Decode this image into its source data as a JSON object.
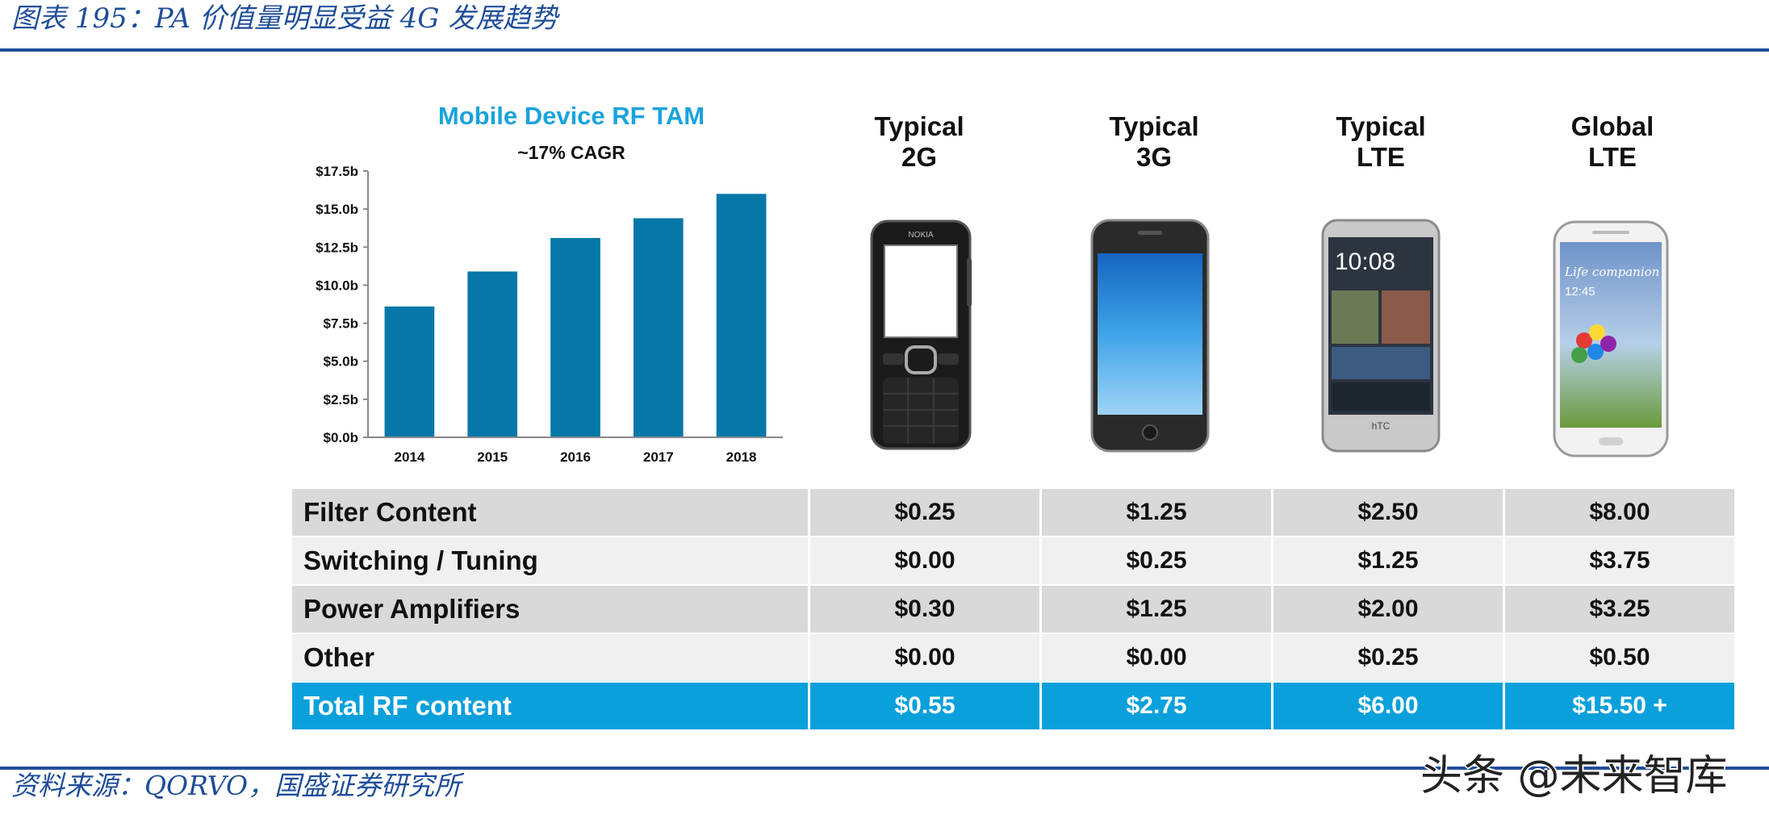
{
  "figure_title": "图表 195：PA 价值量明显受益 4G 发展趋势",
  "source": "资料来源：QORVO，国盛证券研究所",
  "watermark": "头条 @未来智库",
  "colors": {
    "bar": "#0678a8",
    "title": "#1aa3dc",
    "total_row": "#0aa0dc",
    "rule": "#1f4e99"
  },
  "chart_data": {
    "type": "bar",
    "title": "Mobile Device RF TAM",
    "subtitle": "~17% CAGR",
    "categories": [
      "2014",
      "2015",
      "2016",
      "2017",
      "2018"
    ],
    "values": [
      8.6,
      10.9,
      13.1,
      14.4,
      16.0
    ],
    "ylim": [
      0,
      17.5
    ],
    "yticks": [
      0,
      2.5,
      5.0,
      7.5,
      10.0,
      12.5,
      15.0,
      17.5
    ],
    "ytick_labels": [
      "$0.0b",
      "$2.5b",
      "$5.0b",
      "$7.5b",
      "$10.0b",
      "$12.5b",
      "$15.0b",
      "$17.5b"
    ],
    "xlabel": "",
    "ylabel": "",
    "grid": false,
    "legend": "none"
  },
  "phones": [
    {
      "line1": "Typical",
      "line2": "2G",
      "icon": "feature-phone-icon"
    },
    {
      "line1": "Typical",
      "line2": "3G",
      "icon": "smartphone-icon"
    },
    {
      "line1": "Typical",
      "line2": "LTE",
      "icon": "smartphone-icon"
    },
    {
      "line1": "Global",
      "line2": "LTE",
      "icon": "smartphone-icon"
    }
  ],
  "table": {
    "rows": [
      {
        "label": "Filter Content",
        "values": [
          "$0.25",
          "$1.25",
          "$2.50",
          "$8.00"
        ]
      },
      {
        "label": "Switching / Tuning",
        "values": [
          "$0.00",
          "$0.25",
          "$1.25",
          "$3.75"
        ]
      },
      {
        "label": "Power Amplifiers",
        "values": [
          "$0.30",
          "$1.25",
          "$2.00",
          "$3.25"
        ]
      },
      {
        "label": "Other",
        "values": [
          "$0.00",
          "$0.00",
          "$0.25",
          "$0.50"
        ]
      }
    ],
    "total": {
      "label": "Total RF content",
      "values": [
        "$0.55",
        "$2.75",
        "$6.00",
        "$15.50 +"
      ]
    }
  },
  "phone_screens": {
    "htc_time": "10:08",
    "htc_brand": "hTC",
    "nokia_brand": "NOKIA",
    "samsung_text1": "Life companion",
    "samsung_text2": "12:45"
  }
}
